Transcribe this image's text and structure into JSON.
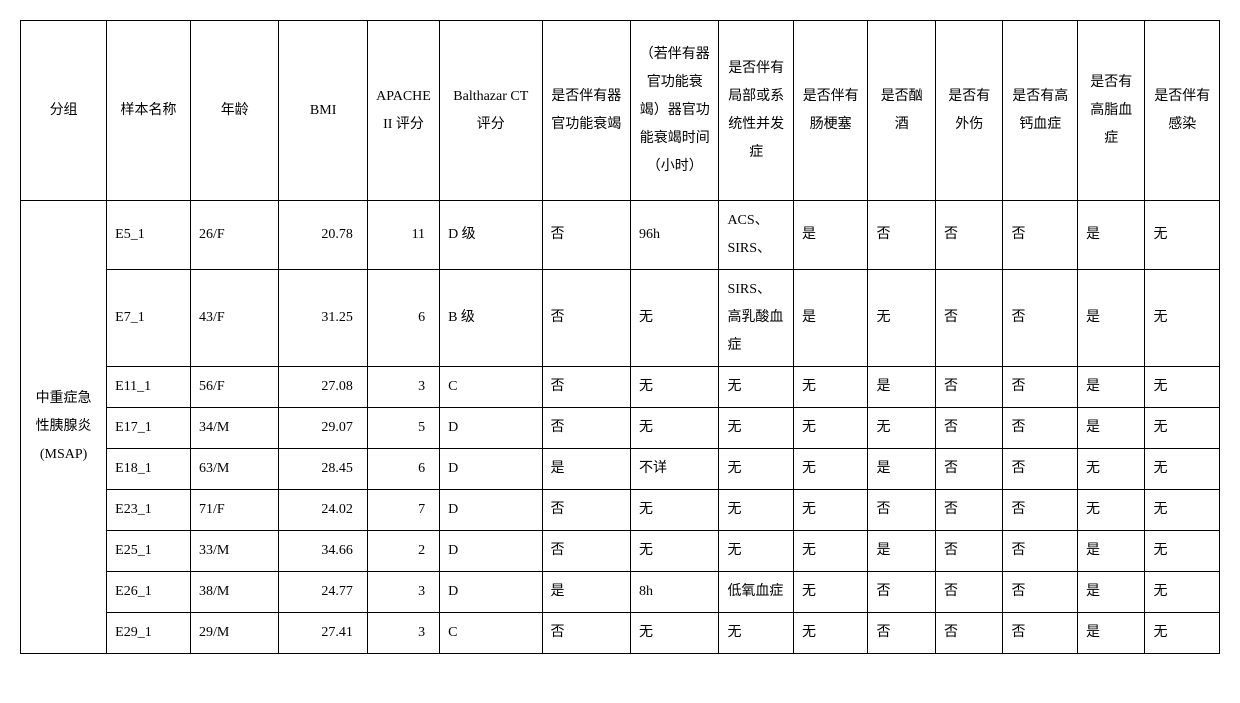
{
  "headers": {
    "group": "分组",
    "sample": "样本名称",
    "age": "年龄",
    "bmi": "BMI",
    "apache": "APACHEII 评分",
    "balthazar": "Balthazar CT 评分",
    "organfail": "是否伴有器官功能衰竭",
    "organtime": "（若伴有器官功能衰竭）器官功能衰竭时间（小时）",
    "complic": "是否伴有局部或系统性并发症",
    "ileus": "是否伴有肠梗塞",
    "alcohol": "是否酗酒",
    "trauma": "是否有外伤",
    "hyperca": "是否有高钙血症",
    "hyperlip": "是否有高脂血症",
    "infect": "是否伴有感染"
  },
  "group_label": "中重症急性胰腺炎(MSAP)",
  "rows": [
    {
      "sample": "E5_1",
      "age": "26/F",
      "bmi": "20.78",
      "apache": "11",
      "balth": "D 级",
      "organfail": "否",
      "organtime": "96h",
      "complic": "ACS、SIRS、",
      "ileus": "是",
      "alcohol": "否",
      "trauma": "否",
      "hyperca": "否",
      "hyperlip": "是",
      "infect": "无"
    },
    {
      "sample": "E7_1",
      "age": "43/F",
      "bmi": "31.25",
      "apache": "6",
      "balth": "B 级",
      "organfail": "否",
      "organtime": "无",
      "complic": "SIRS、高乳酸血症",
      "ileus": "是",
      "alcohol": "无",
      "trauma": "否",
      "hyperca": "否",
      "hyperlip": "是",
      "infect": "无"
    },
    {
      "sample": "E11_1",
      "age": "56/F",
      "bmi": "27.08",
      "apache": "3",
      "balth": "C",
      "organfail": "否",
      "organtime": "无",
      "complic": "无",
      "ileus": "无",
      "alcohol": "是",
      "trauma": "否",
      "hyperca": "否",
      "hyperlip": "是",
      "infect": "无"
    },
    {
      "sample": "E17_1",
      "age": "34/M",
      "bmi": "29.07",
      "apache": "5",
      "balth": "D",
      "organfail": "否",
      "organtime": "无",
      "complic": "无",
      "ileus": "无",
      "alcohol": "无",
      "trauma": "否",
      "hyperca": "否",
      "hyperlip": "是",
      "infect": "无"
    },
    {
      "sample": "E18_1",
      "age": "63/M",
      "bmi": "28.45",
      "apache": "6",
      "balth": "D",
      "organfail": "是",
      "organtime": "不详",
      "complic": "无",
      "ileus": "无",
      "alcohol": "是",
      "trauma": "否",
      "hyperca": "否",
      "hyperlip": "无",
      "infect": "无"
    },
    {
      "sample": "E23_1",
      "age": "71/F",
      "bmi": "24.02",
      "apache": "7",
      "balth": "D",
      "organfail": "否",
      "organtime": "无",
      "complic": "无",
      "ileus": "无",
      "alcohol": "否",
      "trauma": "否",
      "hyperca": "否",
      "hyperlip": "无",
      "infect": "无"
    },
    {
      "sample": "E25_1",
      "age": "33/M",
      "bmi": "34.66",
      "apache": "2",
      "balth": "D",
      "organfail": "否",
      "organtime": "无",
      "complic": "无",
      "ileus": "无",
      "alcohol": "是",
      "trauma": "否",
      "hyperca": "否",
      "hyperlip": "是",
      "infect": "无"
    },
    {
      "sample": "E26_1",
      "age": "38/M",
      "bmi": "24.77",
      "apache": "3",
      "balth": "D",
      "organfail": "是",
      "organtime": "8h",
      "complic": "低氧血症",
      "ileus": "无",
      "alcohol": "否",
      "trauma": "否",
      "hyperca": "否",
      "hyperlip": "是",
      "infect": "无"
    },
    {
      "sample": "E29_1",
      "age": "29/M",
      "bmi": "27.41",
      "apache": "3",
      "balth": "C",
      "organfail": "否",
      "organtime": "无",
      "complic": "无",
      "ileus": "无",
      "alcohol": "否",
      "trauma": "否",
      "hyperca": "否",
      "hyperlip": "是",
      "infect": "无"
    }
  ],
  "style": {
    "border_color": "#000000",
    "background": "#ffffff",
    "font_size_pt": 10.5,
    "line_height": 2
  }
}
